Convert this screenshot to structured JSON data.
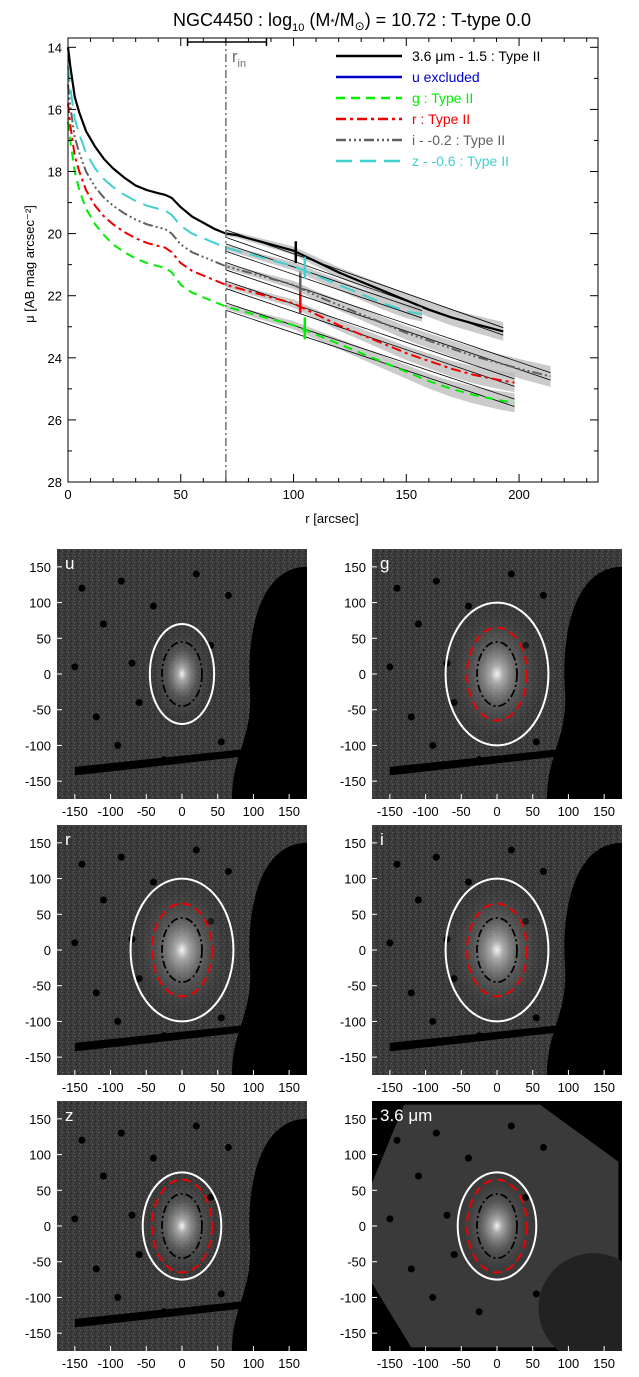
{
  "chart_data": [
    {
      "type": "line",
      "title": {
        "pre": "NGC4450 : log",
        "sub": "10",
        "mid": " (M",
        "star": "*",
        "slash": "/M",
        "sun": "⊙",
        "post": ") = 10.72 : T-type 0.0"
      },
      "xlabel": "r [arcsec]",
      "ylabel": "μ [AB mag arcsec⁻²]",
      "xlim": [
        0,
        235
      ],
      "ylim": [
        28,
        13.7
      ],
      "y_inverted": true,
      "xticks": [
        0,
        50,
        100,
        150,
        200
      ],
      "yticks": [
        14,
        16,
        18,
        20,
        22,
        24,
        26,
        28
      ],
      "r_in": {
        "label": "r",
        "sub": "in",
        "value": 70,
        "err_low": 53,
        "err_high": 88
      },
      "grid": false,
      "legend_position": "top-right",
      "legend": [
        {
          "text": "3.6 μm - 1.5 : Type II",
          "color": "#000000",
          "dash": ""
        },
        {
          "text": "u excluded",
          "color": "#0000cc",
          "dash": ""
        },
        {
          "text": "g : Type II",
          "color": "#00ee00",
          "dash": "9,6"
        },
        {
          "text": "r : Type II",
          "color": "#ee0000",
          "dash": "10,4,3,4"
        },
        {
          "text": "i - -0.2 : Type II",
          "color": "#606060",
          "dash": "10,3,2,3,2,3,2,3"
        },
        {
          "text": "z - -0.6 : Type II",
          "color": "#40d0d0",
          "dash": "16,8"
        }
      ],
      "series": [
        {
          "name": "3.6 μm - 1.5 : Type II",
          "color": "#000000",
          "dash": "",
          "x": [
            0,
            1,
            2,
            3,
            5,
            8,
            12,
            16,
            20,
            25,
            30,
            35,
            40,
            43,
            46,
            50,
            55,
            60,
            65,
            70,
            75,
            80,
            90,
            100,
            110,
            120,
            130,
            140,
            150,
            160,
            170,
            180,
            193
          ],
          "y": [
            14.0,
            14.6,
            15.1,
            15.6,
            16.1,
            16.7,
            17.2,
            17.6,
            17.9,
            18.2,
            18.45,
            18.6,
            18.7,
            18.75,
            18.85,
            19.15,
            19.45,
            19.65,
            19.85,
            20.0,
            20.05,
            20.15,
            20.35,
            20.55,
            20.9,
            21.25,
            21.55,
            21.85,
            22.15,
            22.45,
            22.7,
            22.9,
            23.15
          ],
          "fit_x": [
            70,
            193
          ],
          "fit_y": [
            20.0,
            23.15
          ],
          "break": [
            101,
            20.6
          ]
        },
        {
          "name": "g : Type II",
          "color": "#00ee00",
          "dash": "9,6",
          "x": [
            0,
            1,
            2,
            3,
            5,
            8,
            12,
            16,
            20,
            25,
            30,
            35,
            40,
            43,
            46,
            50,
            55,
            60,
            65,
            70,
            75,
            80,
            90,
            100,
            110,
            120,
            130,
            140,
            150,
            160,
            170,
            180,
            190,
            198
          ],
          "y": [
            16.4,
            17.0,
            17.5,
            18.0,
            18.6,
            19.2,
            19.7,
            20.05,
            20.35,
            20.6,
            20.8,
            20.95,
            21.05,
            21.1,
            21.25,
            21.65,
            21.9,
            22.05,
            22.2,
            22.35,
            22.45,
            22.55,
            22.75,
            22.95,
            23.25,
            23.55,
            23.85,
            24.15,
            24.45,
            24.75,
            25.0,
            25.2,
            25.35,
            25.45
          ],
          "fit_x": [
            70,
            198
          ],
          "fit_y": [
            22.35,
            25.45
          ],
          "break": [
            105,
            23.05
          ]
        },
        {
          "name": "r : Type II",
          "color": "#ee0000",
          "dash": "10,4,3,4",
          "x": [
            0,
            1,
            2,
            3,
            5,
            8,
            12,
            16,
            20,
            25,
            30,
            35,
            40,
            43,
            46,
            50,
            55,
            60,
            65,
            70,
            75,
            80,
            90,
            100,
            110,
            120,
            130,
            140,
            150,
            160,
            170,
            180,
            190,
            198
          ],
          "y": [
            15.8,
            16.5,
            17.0,
            17.5,
            18.0,
            18.6,
            19.1,
            19.45,
            19.7,
            19.95,
            20.15,
            20.3,
            20.4,
            20.45,
            20.6,
            20.95,
            21.2,
            21.35,
            21.5,
            21.65,
            21.75,
            21.85,
            22.05,
            22.25,
            22.6,
            22.95,
            23.25,
            23.55,
            23.85,
            24.1,
            24.35,
            24.55,
            24.7,
            24.8
          ],
          "fit_x": [
            70,
            198
          ],
          "fit_y": [
            21.65,
            24.8
          ],
          "break": [
            103,
            22.2
          ]
        },
        {
          "name": "i - -0.2 : Type II",
          "color": "#606060",
          "dash": "10,3,2,3,2,3,2,3",
          "x": [
            0,
            1,
            2,
            3,
            5,
            8,
            12,
            16,
            20,
            25,
            30,
            35,
            40,
            43,
            46,
            50,
            55,
            60,
            65,
            70,
            75,
            80,
            90,
            100,
            110,
            120,
            130,
            140,
            150,
            160,
            170,
            180,
            190,
            200,
            214
          ],
          "y": [
            15.2,
            15.9,
            16.4,
            16.9,
            17.4,
            18.0,
            18.5,
            18.85,
            19.1,
            19.35,
            19.55,
            19.7,
            19.8,
            19.85,
            20.0,
            20.35,
            20.6,
            20.75,
            20.9,
            21.05,
            21.15,
            21.25,
            21.45,
            21.65,
            22.0,
            22.3,
            22.6,
            22.9,
            23.2,
            23.45,
            23.7,
            23.95,
            24.15,
            24.35,
            24.6
          ],
          "fit_x": [
            70,
            214
          ],
          "fit_y": [
            21.05,
            24.6
          ],
          "break": [
            103,
            21.55
          ]
        },
        {
          "name": "z - -0.6 : Type II",
          "color": "#40d0d0",
          "dash": "16,8",
          "x": [
            0,
            1,
            2,
            3,
            5,
            8,
            12,
            16,
            20,
            25,
            30,
            35,
            40,
            43,
            46,
            50,
            55,
            60,
            65,
            70,
            75,
            80,
            90,
            100,
            110,
            120,
            130,
            140,
            150,
            157
          ],
          "y": [
            14.6,
            15.3,
            15.8,
            16.3,
            16.8,
            17.4,
            17.9,
            18.25,
            18.5,
            18.75,
            18.95,
            19.1,
            19.2,
            19.25,
            19.4,
            19.75,
            20.0,
            20.15,
            20.3,
            20.45,
            20.55,
            20.65,
            20.85,
            21.05,
            21.35,
            21.65,
            21.95,
            22.25,
            22.5,
            22.6
          ],
          "fit_x": [
            70,
            157
          ],
          "fit_y": [
            20.45,
            22.6
          ],
          "break": [
            105,
            21.1
          ]
        }
      ]
    },
    {
      "type": "image-grid",
      "xticks": [
        -150,
        -100,
        -50,
        0,
        50,
        100,
        150
      ],
      "yticks": [
        150,
        100,
        50,
        0,
        -50,
        -100,
        -150
      ],
      "panels": [
        {
          "label": "u",
          "label_extra": "",
          "outer_semi_axes": [
            45,
            70
          ],
          "break_ellipse": false
        },
        {
          "label": "g",
          "label_extra": "",
          "outer_semi_axes": [
            72,
            100
          ],
          "break_ellipse": true
        },
        {
          "label": "r",
          "label_extra": "",
          "outer_semi_axes": [
            72,
            100
          ],
          "break_ellipse": true
        },
        {
          "label": "i",
          "label_extra": "",
          "outer_semi_axes": [
            72,
            100
          ],
          "break_ellipse": true
        },
        {
          "label": "z",
          "label_extra": "",
          "outer_semi_axes": [
            55,
            75
          ],
          "break_ellipse": true
        },
        {
          "label": "3.6",
          "label_extra": " μm",
          "outer_semi_axes": [
            55,
            75
          ],
          "break_ellipse": true
        }
      ]
    }
  ]
}
